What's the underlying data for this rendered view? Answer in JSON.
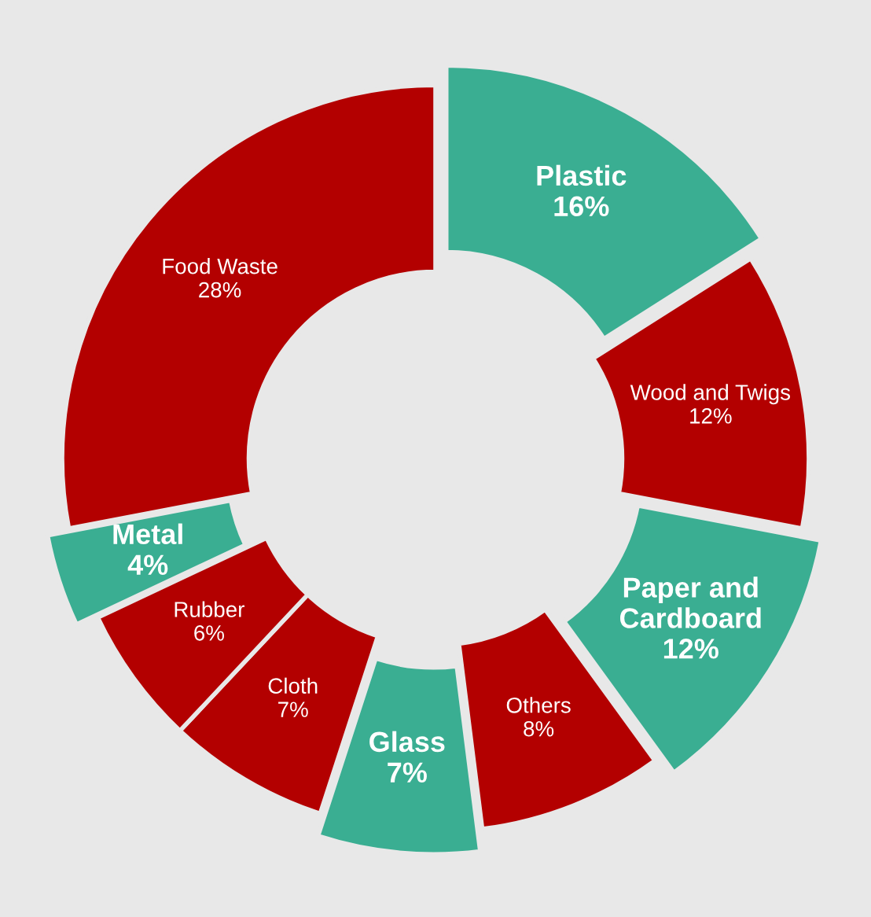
{
  "chart_data": {
    "type": "donut",
    "categories": [
      "Plastic",
      "Wood and Twigs",
      "Paper and Cardboard",
      "Others",
      "Glass",
      "Cloth",
      "Rubber",
      "Metal",
      "Food Waste"
    ],
    "values": [
      16,
      12,
      12,
      8,
      7,
      7,
      6,
      4,
      28
    ],
    "value_labels": [
      "16%",
      "12%",
      "12%",
      "8%",
      "7%",
      "7%",
      "6%",
      "4%",
      "28%"
    ],
    "colors": [
      "#3aae92",
      "#b30000",
      "#3aae92",
      "#b30000",
      "#3aae92",
      "#b30000",
      "#b30000",
      "#3aae92",
      "#b30000"
    ]
  }
}
